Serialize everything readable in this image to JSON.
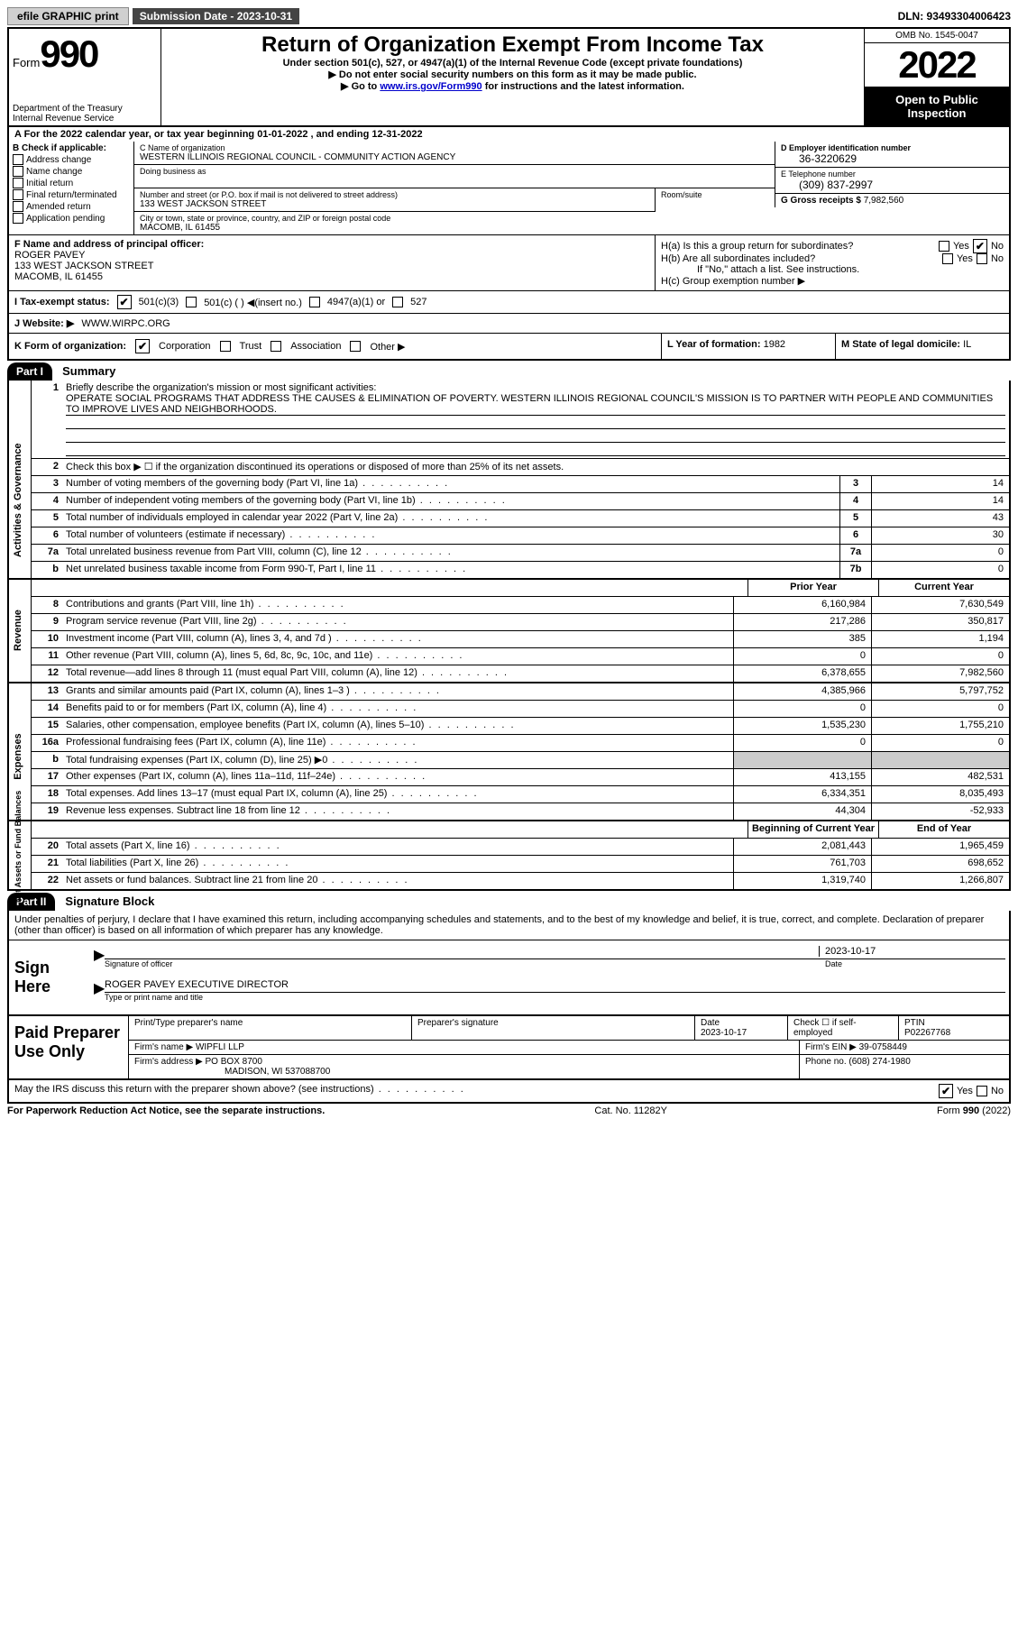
{
  "top": {
    "efile": "efile GRAPHIC print",
    "subdate": "Submission Date - 2023-10-31",
    "dln": "DLN: 93493304006423"
  },
  "header": {
    "form_word": "Form",
    "form_num": "990",
    "title": "Return of Organization Exempt From Income Tax",
    "sub1": "Under section 501(c), 527, or 4947(a)(1) of the Internal Revenue Code (except private foundations)",
    "sub2": "▶ Do not enter social security numbers on this form as it may be made public.",
    "sub3_pre": "▶ Go to ",
    "sub3_link": "www.irs.gov/Form990",
    "sub3_post": " for instructions and the latest information.",
    "dept": "Department of the Treasury\nInternal Revenue Service",
    "omb": "OMB No. 1545-0047",
    "year": "2022",
    "open": "Open to Public Inspection"
  },
  "rowA": "A For the 2022 calendar year, or tax year beginning 01-01-2022   , and ending 12-31-2022",
  "colB": {
    "hdr": "B Check if applicable:",
    "items": [
      "Address change",
      "Name change",
      "Initial return",
      "Final return/terminated",
      "Amended return",
      "Application pending"
    ]
  },
  "colC": {
    "name_label": "C Name of organization",
    "name": "WESTERN ILLINOIS REGIONAL COUNCIL - COMMUNITY ACTION AGENCY",
    "dba_label": "Doing business as",
    "addr_label": "Number and street (or P.O. box if mail is not delivered to street address)",
    "room_label": "Room/suite",
    "addr": "133 WEST JACKSON STREET",
    "city_label": "City or town, state or province, country, and ZIP or foreign postal code",
    "city": "MACOMB, IL  61455"
  },
  "colD": {
    "ein_label": "D Employer identification number",
    "ein": "36-3220629",
    "tel_label": "E Telephone number",
    "tel": "(309) 837-2997",
    "gross_label": "G Gross receipts $",
    "gross": "7,982,560"
  },
  "rowF": {
    "label": "F  Name and address of principal officer:",
    "name": "ROGER PAVEY",
    "addr1": "133 WEST JACKSON STREET",
    "addr2": "MACOMB, IL  61455"
  },
  "rowH": {
    "ha": "H(a)  Is this a group return for subordinates?",
    "hb": "H(b)  Are all subordinates included?",
    "hb_note": "If \"No,\" attach a list. See instructions.",
    "hc": "H(c)  Group exemption number ▶",
    "yes": "Yes",
    "no": "No"
  },
  "rowI": {
    "label": "I   Tax-exempt status:",
    "opt1": "501(c)(3)",
    "opt2": "501(c) (  ) ◀(insert no.)",
    "opt3": "4947(a)(1) or",
    "opt4": "527"
  },
  "rowJ": {
    "label": "J   Website: ▶",
    "val": "WWW.WIRPC.ORG"
  },
  "rowK": {
    "label": "K Form of organization:",
    "corp": "Corporation",
    "trust": "Trust",
    "assoc": "Association",
    "other": "Other ▶",
    "l_label": "L Year of formation:",
    "l_val": "1982",
    "m_label": "M State of legal domicile:",
    "m_val": "IL"
  },
  "part1": {
    "num": "Part I",
    "title": "Summary",
    "line1_label": "Briefly describe the organization's mission or most significant activities:",
    "line1_text": "OPERATE SOCIAL PROGRAMS THAT ADDRESS THE CAUSES & ELIMINATION OF POVERTY. WESTERN ILLINOIS REGIONAL COUNCIL'S MISSION IS TO PARTNER WITH PEOPLE AND COMMUNITIES TO IMPROVE LIVES AND NEIGHBORHOODS.",
    "line2": "Check this box ▶ ☐  if the organization discontinued its operations or disposed of more than 25% of its net assets.",
    "tabs": {
      "ag": "Activities & Governance",
      "rev": "Revenue",
      "exp": "Expenses",
      "net": "Net Assets or Fund Balances"
    },
    "lines_ag": [
      {
        "n": "3",
        "d": "Number of voting members of the governing body (Part VI, line 1a)",
        "box": "3",
        "v": "14"
      },
      {
        "n": "4",
        "d": "Number of independent voting members of the governing body (Part VI, line 1b)",
        "box": "4",
        "v": "14"
      },
      {
        "n": "5",
        "d": "Total number of individuals employed in calendar year 2022 (Part V, line 2a)",
        "box": "5",
        "v": "43"
      },
      {
        "n": "6",
        "d": "Total number of volunteers (estimate if necessary)",
        "box": "6",
        "v": "30"
      },
      {
        "n": "7a",
        "d": "Total unrelated business revenue from Part VIII, column (C), line 12",
        "box": "7a",
        "v": "0"
      },
      {
        "n": "b",
        "d": "Net unrelated business taxable income from Form 990-T, Part I, line 11",
        "box": "7b",
        "v": "0"
      }
    ],
    "col_headers": {
      "prior": "Prior Year",
      "current": "Current Year"
    },
    "lines_rev": [
      {
        "n": "8",
        "d": "Contributions and grants (Part VIII, line 1h)",
        "p": "6,160,984",
        "c": "7,630,549"
      },
      {
        "n": "9",
        "d": "Program service revenue (Part VIII, line 2g)",
        "p": "217,286",
        "c": "350,817"
      },
      {
        "n": "10",
        "d": "Investment income (Part VIII, column (A), lines 3, 4, and 7d )",
        "p": "385",
        "c": "1,194"
      },
      {
        "n": "11",
        "d": "Other revenue (Part VIII, column (A), lines 5, 6d, 8c, 9c, 10c, and 11e)",
        "p": "0",
        "c": "0"
      },
      {
        "n": "12",
        "d": "Total revenue—add lines 8 through 11 (must equal Part VIII, column (A), line 12)",
        "p": "6,378,655",
        "c": "7,982,560"
      }
    ],
    "lines_exp": [
      {
        "n": "13",
        "d": "Grants and similar amounts paid (Part IX, column (A), lines 1–3 )",
        "p": "4,385,966",
        "c": "5,797,752"
      },
      {
        "n": "14",
        "d": "Benefits paid to or for members (Part IX, column (A), line 4)",
        "p": "0",
        "c": "0"
      },
      {
        "n": "15",
        "d": "Salaries, other compensation, employee benefits (Part IX, column (A), lines 5–10)",
        "p": "1,535,230",
        "c": "1,755,210"
      },
      {
        "n": "16a",
        "d": "Professional fundraising fees (Part IX, column (A), line 11e)",
        "p": "0",
        "c": "0"
      },
      {
        "n": "b",
        "d": "Total fundraising expenses (Part IX, column (D), line 25) ▶0",
        "p": "",
        "c": "",
        "shade": true
      },
      {
        "n": "17",
        "d": "Other expenses (Part IX, column (A), lines 11a–11d, 11f–24e)",
        "p": "413,155",
        "c": "482,531"
      },
      {
        "n": "18",
        "d": "Total expenses. Add lines 13–17 (must equal Part IX, column (A), line 25)",
        "p": "6,334,351",
        "c": "8,035,493"
      },
      {
        "n": "19",
        "d": "Revenue less expenses. Subtract line 18 from line 12",
        "p": "44,304",
        "c": "-52,933"
      }
    ],
    "col_headers2": {
      "prior": "Beginning of Current Year",
      "current": "End of Year"
    },
    "lines_net": [
      {
        "n": "20",
        "d": "Total assets (Part X, line 16)",
        "p": "2,081,443",
        "c": "1,965,459"
      },
      {
        "n": "21",
        "d": "Total liabilities (Part X, line 26)",
        "p": "761,703",
        "c": "698,652"
      },
      {
        "n": "22",
        "d": "Net assets or fund balances. Subtract line 21 from line 20",
        "p": "1,319,740",
        "c": "1,266,807"
      }
    ]
  },
  "part2": {
    "num": "Part II",
    "title": "Signature Block",
    "decl": "Under penalties of perjury, I declare that I have examined this return, including accompanying schedules and statements, and to the best of my knowledge and belief, it is true, correct, and complete. Declaration of preparer (other than officer) is based on all information of which preparer has any knowledge.",
    "sign_here": "Sign Here",
    "sig_date": "2023-10-17",
    "sig_label": "Signature of officer",
    "date_label": "Date",
    "name_title": "ROGER PAVEY  EXECUTIVE DIRECTOR",
    "name_title_label": "Type or print name and title",
    "paid": "Paid Preparer Use Only",
    "prep_name_label": "Print/Type preparer's name",
    "prep_sig_label": "Preparer's signature",
    "prep_date_label": "Date",
    "prep_date": "2023-10-17",
    "self_emp": "Check ☐ if self-employed",
    "ptin_label": "PTIN",
    "ptin": "P02267768",
    "firm_name_label": "Firm's name   ▶",
    "firm_name": "WIPFLI LLP",
    "firm_ein_label": "Firm's EIN ▶",
    "firm_ein": "39-0758449",
    "firm_addr_label": "Firm's address ▶",
    "firm_addr1": "PO BOX 8700",
    "firm_addr2": "MADISON, WI  537088700",
    "phone_label": "Phone no.",
    "phone": "(608) 274-1980",
    "discuss": "May the IRS discuss this return with the preparer shown above? (see instructions)",
    "paperwork": "For Paperwork Reduction Act Notice, see the separate instructions.",
    "cat": "Cat. No. 11282Y",
    "form_foot": "Form 990 (2022)"
  }
}
